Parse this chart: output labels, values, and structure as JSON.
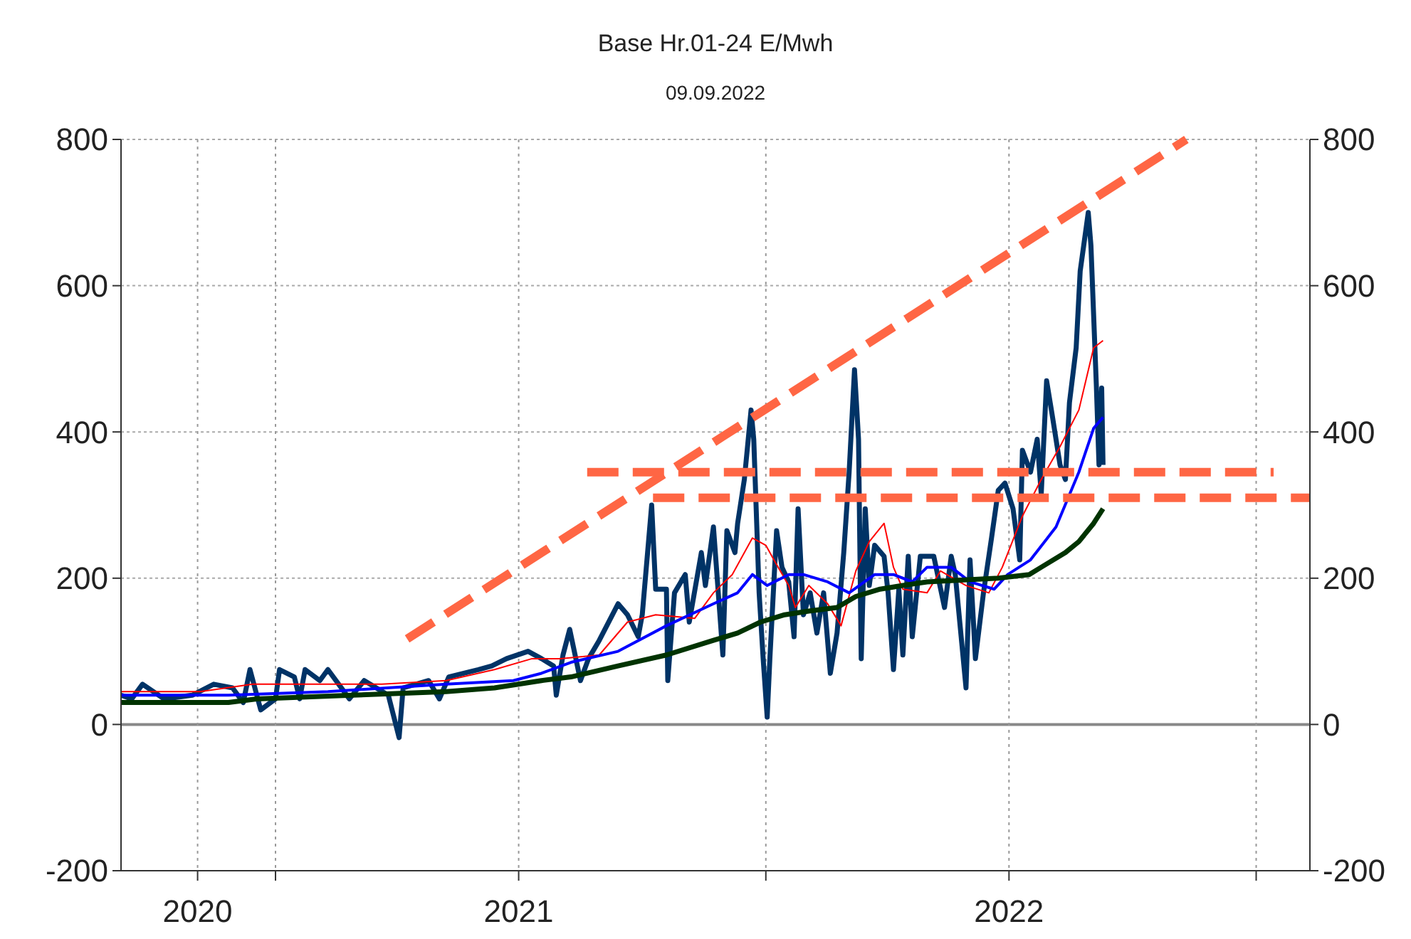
{
  "chart_data": {
    "type": "line",
    "title": "Base Hr.01-24 E/Mwh",
    "subtitle": "09.09.2022",
    "xlim": [
      "2020-09-08",
      "2023-02-10"
    ],
    "xticks": [
      {
        "value": "2020-11-04",
        "label": "2020"
      },
      {
        "value": "2021-01-01",
        "label": null
      },
      {
        "value": "2021-07-01",
        "label": "2021"
      },
      {
        "value": "2022-01-01",
        "label": null
      },
      {
        "value": "2022-07-01",
        "label": "2022"
      },
      {
        "value": "2023-01-01",
        "label": null
      }
    ],
    "ylim": [
      -200,
      800
    ],
    "yticks": [
      -200,
      0,
      200,
      400,
      600,
      800
    ],
    "y2lim": [
      -200,
      800
    ],
    "y2ticks": [
      -200,
      0,
      200,
      400,
      600,
      800
    ],
    "grid": true,
    "marker": "none",
    "line_style": "solid",
    "series": [
      {
        "color": "#003366",
        "x": [
          "2020-09-08",
          "2020-09-16",
          "2020-09-24",
          "2020-10-10",
          "2020-10-31",
          "2020-11-16",
          "2020-11-30",
          "2020-12-08",
          "2020-12-13",
          "2020-12-21",
          "2021-01-01",
          "2021-01-04",
          "2021-01-15",
          "2021-01-19",
          "2021-01-23",
          "2021-02-03",
          "2021-02-09",
          "2021-02-25",
          "2021-03-08",
          "2021-03-26",
          "2021-04-03",
          "2021-04-06",
          "2021-04-25",
          "2021-05-03",
          "2021-05-10",
          "2021-06-01",
          "2021-06-11",
          "2021-06-22",
          "2021-07-08",
          "2021-07-18",
          "2021-07-27",
          "2021-07-29",
          "2021-08-03",
          "2021-08-08",
          "2021-08-12",
          "2021-08-16",
          "2021-08-22",
          "2021-08-30",
          "2021-09-13",
          "2021-09-20",
          "2021-09-28",
          "2021-10-01",
          "2021-10-08",
          "2021-10-11",
          "2021-10-19",
          "2021-10-20",
          "2021-10-25",
          "2021-11-02",
          "2021-11-05",
          "2021-11-14",
          "2021-11-17",
          "2021-11-23",
          "2021-11-30",
          "2021-12-03",
          "2021-12-09",
          "2021-12-11",
          "2021-12-16",
          "2021-12-21",
          "2021-12-23",
          "2021-12-27",
          "2021-12-30",
          "2022-01-02",
          "2022-01-04",
          "2022-01-09",
          "2022-01-13",
          "2022-01-18",
          "2022-01-22",
          "2022-01-25",
          "2022-01-29",
          "2022-02-03",
          "2022-02-08",
          "2022-02-13",
          "2022-02-18",
          "2022-02-23",
          "2022-02-28",
          "2022-03-04",
          "2022-03-08",
          "2022-03-11",
          "2022-03-13",
          "2022-03-16",
          "2022-03-19",
          "2022-03-23",
          "2022-03-30",
          "2022-04-02",
          "2022-04-06",
          "2022-04-10",
          "2022-04-13",
          "2022-04-17",
          "2022-04-20",
          "2022-04-26",
          "2022-05-06",
          "2022-05-14",
          "2022-05-19",
          "2022-05-22",
          "2022-05-30",
          "2022-06-02",
          "2022-06-06",
          "2022-06-12",
          "2022-06-18",
          "2022-06-23",
          "2022-06-28",
          "2022-07-04",
          "2022-07-09",
          "2022-07-11",
          "2022-07-17",
          "2022-07-22",
          "2022-07-25",
          "2022-07-29",
          "2022-08-02",
          "2022-08-08",
          "2022-08-12",
          "2022-08-15",
          "2022-08-20",
          "2022-08-23",
          "2022-08-29",
          "2022-08-31",
          "2022-09-04",
          "2022-09-06",
          "2022-09-08",
          "2022-09-09"
        ],
        "values": [
          40,
          35,
          55,
          35,
          40,
          55,
          50,
          30,
          75,
          20,
          35,
          75,
          65,
          35,
          75,
          60,
          75,
          35,
          60,
          40,
          -18,
          50,
          60,
          35,
          65,
          75,
          80,
          90,
          100,
          90,
          80,
          40,
          95,
          130,
          95,
          60,
          90,
          115,
          165,
          150,
          120,
          150,
          300,
          185,
          185,
          60,
          180,
          205,
          140,
          235,
          190,
          270,
          95,
          265,
          235,
          275,
          335,
          430,
          390,
          180,
          90,
          10,
          90,
          265,
          215,
          195,
          120,
          295,
          150,
          180,
          125,
          180,
          70,
          125,
          235,
          345,
          485,
          390,
          90,
          295,
          190,
          245,
          230,
          180,
          75,
          185,
          95,
          230,
          120,
          230,
          230,
          160,
          230,
          205,
          50,
          225,
          90,
          180,
          255,
          320,
          330,
          295,
          225,
          375,
          345,
          390,
          315,
          470,
          425,
          355,
          335,
          440,
          515,
          620,
          700,
          655,
          465,
          355,
          460,
          355
        ]
      },
      {
        "color": "#ff0000",
        "x": [
          "2020-09-08",
          "2020-11-06",
          "2020-12-15",
          "2021-01-30",
          "2021-03-21",
          "2021-05-08",
          "2021-06-13",
          "2021-07-11",
          "2021-08-01",
          "2021-08-30",
          "2021-09-20",
          "2021-10-11",
          "2021-11-09",
          "2021-11-23",
          "2021-12-07",
          "2021-12-22",
          "2022-01-01",
          "2022-01-07",
          "2022-01-18",
          "2022-01-23",
          "2022-02-02",
          "2022-02-16",
          "2022-02-26",
          "2022-03-09",
          "2022-03-19",
          "2022-03-30",
          "2022-04-06",
          "2022-04-13",
          "2022-05-01",
          "2022-05-11",
          "2022-05-30",
          "2022-06-16",
          "2022-06-26",
          "2022-07-11",
          "2022-07-25",
          "2022-08-08",
          "2022-08-22",
          "2022-09-02",
          "2022-09-09"
        ],
        "values": [
          45,
          45,
          55,
          55,
          55,
          60,
          75,
          90,
          90,
          95,
          140,
          150,
          145,
          180,
          205,
          255,
          245,
          225,
          190,
          160,
          190,
          165,
          135,
          210,
          250,
          275,
          215,
          185,
          180,
          210,
          190,
          180,
          215,
          285,
          335,
          380,
          430,
          515,
          525
        ]
      },
      {
        "color": "#0000ff",
        "x": [
          "2020-09-08",
          "2020-11-27",
          "2021-02-09",
          "2021-05-08",
          "2021-06-27",
          "2021-07-18",
          "2021-08-09",
          "2021-09-13",
          "2021-10-19",
          "2021-11-23",
          "2021-12-11",
          "2021-12-22",
          "2022-01-02",
          "2022-01-18",
          "2022-01-29",
          "2022-02-16",
          "2022-03-04",
          "2022-03-23",
          "2022-04-06",
          "2022-04-20",
          "2022-05-01",
          "2022-05-19",
          "2022-06-02",
          "2022-06-20",
          "2022-06-30",
          "2022-07-17",
          "2022-08-05",
          "2022-08-22",
          "2022-09-02",
          "2022-09-09"
        ],
        "values": [
          40,
          40,
          45,
          55,
          60,
          70,
          85,
          100,
          135,
          165,
          180,
          205,
          190,
          205,
          205,
          195,
          180,
          205,
          205,
          195,
          215,
          215,
          195,
          185,
          205,
          225,
          270,
          345,
          405,
          420
        ]
      },
      {
        "color": "#003300",
        "x": [
          "2020-09-08",
          "2020-11-27",
          "2020-12-18",
          "2021-02-27",
          "2021-05-08",
          "2021-06-13",
          "2021-07-18",
          "2021-08-09",
          "2021-09-13",
          "2021-10-19",
          "2021-11-23",
          "2021-12-11",
          "2021-12-28",
          "2022-01-15",
          "2022-02-02",
          "2022-02-23",
          "2022-03-09",
          "2022-03-27",
          "2022-04-13",
          "2022-05-01",
          "2022-06-23",
          "2022-07-16",
          "2022-07-25",
          "2022-08-12",
          "2022-08-22",
          "2022-09-02",
          "2022-09-09"
        ],
        "values": [
          30,
          30,
          35,
          40,
          45,
          50,
          60,
          65,
          80,
          95,
          115,
          125,
          140,
          150,
          155,
          160,
          175,
          185,
          190,
          195,
          200,
          205,
          215,
          235,
          250,
          275,
          295
        ]
      },
      {
        "color": "#ff6644",
        "line_style": "dashed",
        "x": [
          "2021-04-09",
          "2022-11-10"
        ],
        "values": [
          117,
          800
        ]
      },
      {
        "color": "#ff6644",
        "line_style": "dashed",
        "x": [
          "2021-08-21",
          "2023-01-14"
        ],
        "values": [
          345,
          345
        ]
      },
      {
        "color": "#ff6644",
        "line_style": "dashed",
        "x": [
          "2021-10-09",
          "2023-02-10"
        ],
        "values": [
          310,
          310
        ]
      }
    ]
  }
}
